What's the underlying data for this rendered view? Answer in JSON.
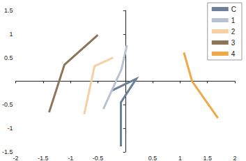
{
  "chart_data": {
    "type": "line",
    "marker": "arrow",
    "legend": "upper right",
    "xlim": [
      -2,
      2
    ],
    "xticks": [
      -2,
      -1.5,
      -1,
      -0.5,
      0.5,
      1,
      1.5,
      2
    ],
    "ylim": [
      -1.5,
      1.5
    ],
    "yticks": [
      -1.5,
      -1,
      -0.5,
      0.5,
      1,
      1.5
    ],
    "series": [
      {
        "name": "C",
        "color": "#6b7f99",
        "x": [
          -0.25,
          0.2,
          -0.08,
          -0.08
        ],
        "values": [
          -0.2,
          0.05,
          -0.45,
          -1.38
        ]
      },
      {
        "name": "1",
        "color": "#b8c2d0",
        "x": [
          0.03,
          -0.07,
          -0.4
        ],
        "values": [
          0.76,
          0.25,
          -0.59
        ]
      },
      {
        "name": "2",
        "color": "#f6d0a2",
        "x": [
          -0.22,
          -0.56,
          -0.75
        ],
        "values": [
          0.5,
          0.32,
          -0.7
        ]
      },
      {
        "name": "3",
        "color": "#8c7558",
        "x": [
          -0.5,
          -1.11,
          -1.39
        ],
        "values": [
          0.98,
          0.35,
          -0.66
        ]
      },
      {
        "name": "4",
        "color": "#f0a848",
        "x": [
          1.07,
          1.22,
          1.69
        ],
        "values": [
          0.61,
          0.0,
          -0.78
        ]
      }
    ]
  }
}
